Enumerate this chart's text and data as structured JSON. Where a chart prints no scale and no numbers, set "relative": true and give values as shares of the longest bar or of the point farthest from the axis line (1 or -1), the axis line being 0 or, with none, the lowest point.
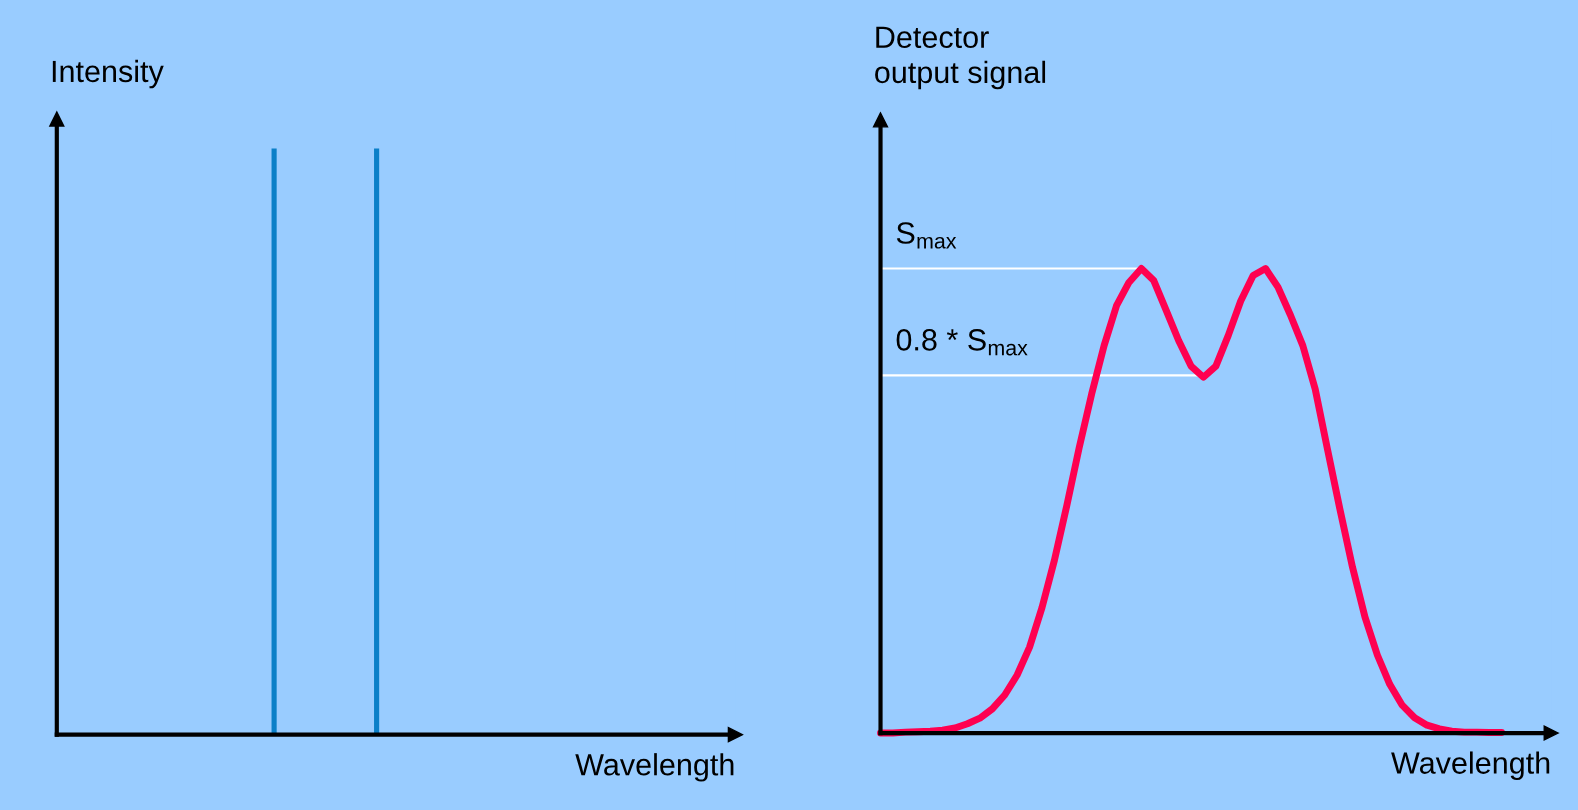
{
  "chart_data": [
    {
      "type": "bar",
      "relative": true,
      "ylabel": "Intensity",
      "xlabel": "Wavelength",
      "categories": [
        null,
        null
      ],
      "values": [
        1,
        1
      ],
      "color": "#0a7fc8",
      "tick_labels": false
    },
    {
      "type": "line",
      "relative": true,
      "ylabel": "Detector\noutput signal",
      "xlabel": "Wavelength",
      "tick_labels": false,
      "categories": [
        null,
        null,
        null,
        null,
        null,
        null,
        null,
        null,
        null,
        null,
        null,
        null,
        null,
        null,
        null,
        null,
        null,
        null,
        null,
        null,
        null,
        null,
        null,
        null,
        null,
        null,
        null,
        null,
        null,
        null,
        null,
        null,
        null,
        null,
        null,
        null,
        null,
        null,
        null,
        null,
        null,
        null,
        null,
        null,
        null,
        null,
        null,
        null,
        null,
        null,
        null
      ],
      "series": [
        {
          "color": "#ff0050",
          "values": [
            0,
            0,
            0.002,
            0.003,
            0.004,
            0.006,
            0.011,
            0.02,
            0.032,
            0.052,
            0.082,
            0.125,
            0.185,
            0.27,
            0.372,
            0.49,
            0.615,
            0.73,
            0.834,
            0.92,
            0.97,
            1.0,
            0.974,
            0.91,
            0.845,
            0.79,
            0.766,
            0.79,
            0.856,
            0.93,
            0.985,
            1.0,
            0.96,
            0.9,
            0.834,
            0.74,
            0.609,
            0.48,
            0.357,
            0.25,
            0.168,
            0.105,
            0.06,
            0.033,
            0.017,
            0.009,
            0.004,
            0.002,
            0.002,
            0.001,
            0.001
          ]
        }
      ],
      "ref_lines": [
        {
          "axis": "y",
          "value": 1,
          "label": "S$_{max}$",
          "color": "#ffffff"
        },
        {
          "axis": "y",
          "value": 0.77,
          "label": "0.8 * S$_{max}$",
          "color": "#ffffff"
        }
      ]
    }
  ]
}
